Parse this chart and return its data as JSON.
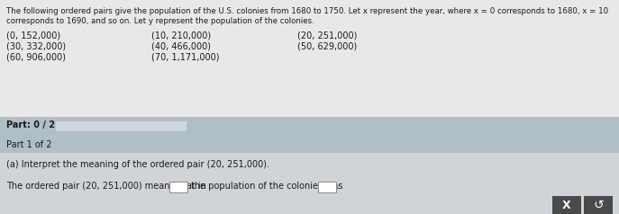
{
  "overall_bg": "#d4d4d4",
  "top_section_bg": "#e8e8e8",
  "part_bar_bg": "#b0bec5",
  "progress_bar_fill": "#cfd8dc",
  "part1_bar_bg": "#b0bec5",
  "bottom_section_bg": "#d0d4d8",
  "title_line1": "The following ordered pairs give the population of the U.S. colonies from 1680 to 1750. Let x represent the year, where x = 0 corresponds to 1680, x = 10",
  "title_line2": "corresponds to 1690, and so on. Let y represent the population of the colonies.",
  "pairs_col1": [
    "(0, 152,000)",
    "(30, 332,000)",
    "(60, 906,000)"
  ],
  "pairs_col2": [
    "(10, 210,000)",
    "(40, 466,000)",
    "(70, 1,171,000)"
  ],
  "pairs_col3": [
    "(20, 251,000)",
    "(50, 629,000)"
  ],
  "part_label": "Part: 0 / 2",
  "part1_label": "Part 1 of 2",
  "part_a_text": "(a) Interpret the meaning of the ordered pair (20, 251,000).",
  "bottom_text1": "The ordered pair (20, 251,000) means that in",
  "bottom_text2": "the population of the colonies was",
  "dark_text": "#1a1a1a",
  "btn_color": "#4a4a4a",
  "input_box_color": "#ffffff",
  "input_border_color": "#888888"
}
